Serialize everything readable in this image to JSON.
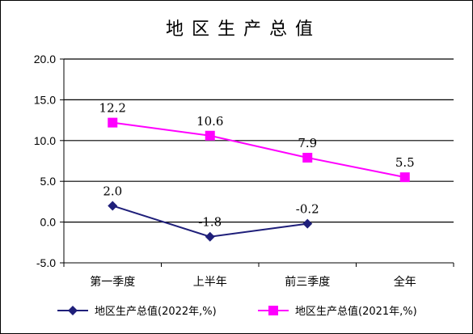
{
  "chart_data": {
    "type": "line",
    "title": "地区生产总值",
    "categories": [
      "第一季度",
      "上半年",
      "前三季度",
      "全年"
    ],
    "ylim": [
      -5.0,
      20.0
    ],
    "yticks": [
      "20.0",
      "15.0",
      "10.0",
      "5.0",
      "0.0",
      "-5.0"
    ],
    "grid": true,
    "legend_position": "bottom",
    "series": [
      {
        "name": "地区生产总值(2022年,%)",
        "values": [
          2.0,
          -1.8,
          -0.2,
          null
        ],
        "labels": [
          "2.0",
          "-1.8",
          "-0.2",
          ""
        ],
        "color": "#1f1f7a",
        "marker": "diamond"
      },
      {
        "name": "地区生产总值(2021年,%)",
        "values": [
          12.2,
          10.6,
          7.9,
          5.5
        ],
        "labels": [
          "12.2",
          "10.6",
          "7.9",
          "5.5"
        ],
        "color": "#ff00ff",
        "marker": "square"
      }
    ]
  }
}
